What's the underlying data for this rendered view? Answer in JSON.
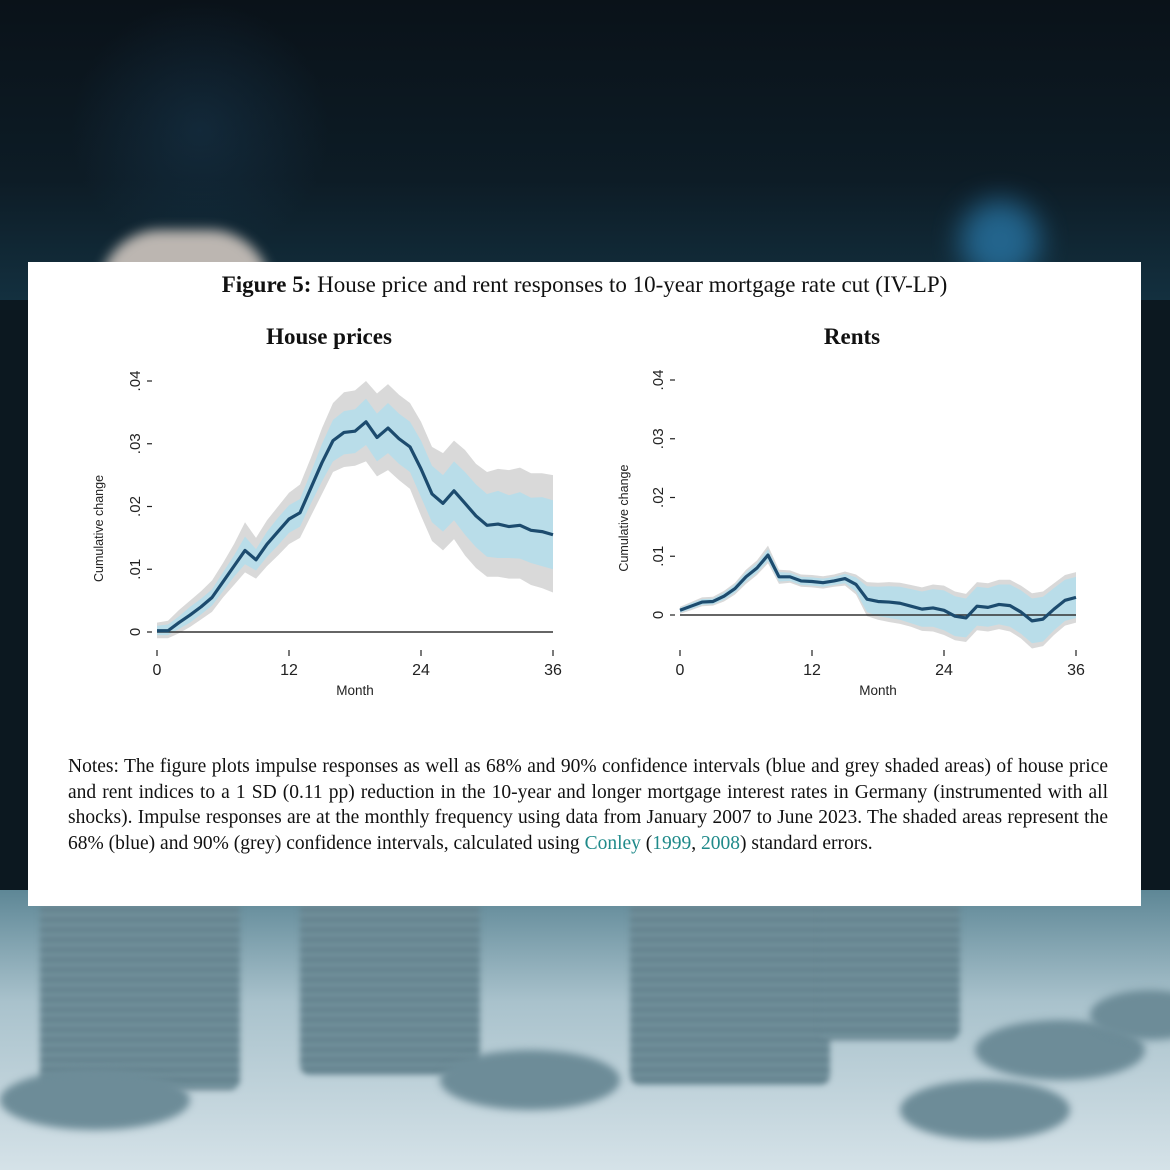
{
  "figure": {
    "label": "Figure 5:",
    "title": "House price and rent responses to 10-year mortgage rate cut (IV-LP)"
  },
  "colors": {
    "line": "#1c4b6e",
    "ci68": "#b9dde9",
    "ci90": "#d9d9d9",
    "zero_line": "#333333",
    "citation": "#1f8a8a"
  },
  "panels": [
    {
      "title": "House prices",
      "ylabel": "Cumulative change",
      "xlabel": "Month"
    },
    {
      "title": "Rents",
      "ylabel": "Cumulative change",
      "xlabel": "Month"
    }
  ],
  "notes": {
    "prefix": "Notes: The figure plots impulse responses as well as 68% and 90% confidence intervals (blue and grey shaded areas) of house price and rent indices to a 1 SD (0.11 pp) reduction in the 10-year and longer mortgage interest rates in Germany (instrumented with all shocks). Impulse responses are at the monthly frequency using data from January 2007 to June 2023. The shaded areas represent the 68% (blue) and 90% (grey) confidence intervals, calculated using ",
    "cite_author": "Conley",
    "paren_open": " (",
    "cite_year1": "1999",
    "comma": ", ",
    "cite_year2": "2008",
    "suffix": ") standard errors."
  },
  "chart_data": [
    {
      "type": "line",
      "title": "House prices",
      "xlabel": "Month",
      "ylabel": "Cumulative change",
      "xticks": [
        0,
        12,
        24,
        36
      ],
      "yticks": [
        0,
        0.01,
        0.02,
        0.03,
        0.04
      ],
      "ytick_labels": [
        "0",
        ".01",
        ".02",
        ".03",
        ".04"
      ],
      "xlim": [
        0,
        36
      ],
      "ylim": [
        0,
        0.04
      ],
      "x": [
        0,
        1,
        2,
        3,
        4,
        5,
        6,
        7,
        8,
        9,
        10,
        11,
        12,
        13,
        14,
        15,
        16,
        17,
        18,
        19,
        20,
        21,
        22,
        23,
        24,
        25,
        26,
        27,
        28,
        29,
        30,
        31,
        32,
        33,
        34,
        35,
        36
      ],
      "series": [
        {
          "name": "Impulse response",
          "values": [
            0.0002,
            0.0002,
            0.0015,
            0.0027,
            0.004,
            0.0055,
            0.008,
            0.0105,
            0.013,
            0.0115,
            0.014,
            0.016,
            0.018,
            0.019,
            0.023,
            0.027,
            0.0305,
            0.0318,
            0.032,
            0.0335,
            0.031,
            0.0325,
            0.0308,
            0.0295,
            0.026,
            0.022,
            0.0205,
            0.0225,
            0.0205,
            0.0185,
            0.017,
            0.0172,
            0.0168,
            0.017,
            0.0162,
            0.016,
            0.0155
          ]
        },
        {
          "name": "68% CI lower",
          "values": [
            -0.0005,
            -0.0005,
            0.0005,
            0.0015,
            0.0028,
            0.0042,
            0.0065,
            0.0088,
            0.0108,
            0.0098,
            0.012,
            0.0138,
            0.0158,
            0.0168,
            0.0205,
            0.024,
            0.0272,
            0.0283,
            0.0285,
            0.0298,
            0.0272,
            0.0285,
            0.0268,
            0.0255,
            0.0215,
            0.0175,
            0.016,
            0.0178,
            0.0155,
            0.0135,
            0.012,
            0.0118,
            0.0118,
            0.0117,
            0.011,
            0.0105,
            0.01
          ]
        },
        {
          "name": "68% CI upper",
          "values": [
            0.001,
            0.0012,
            0.0025,
            0.004,
            0.0053,
            0.0068,
            0.0095,
            0.0122,
            0.0152,
            0.0132,
            0.016,
            0.0182,
            0.0202,
            0.0212,
            0.0255,
            0.03,
            0.0338,
            0.0352,
            0.0355,
            0.0372,
            0.0348,
            0.0365,
            0.0348,
            0.0335,
            0.0305,
            0.0265,
            0.025,
            0.0272,
            0.0255,
            0.0235,
            0.022,
            0.0225,
            0.0218,
            0.0223,
            0.0214,
            0.0215,
            0.021
          ]
        },
        {
          "name": "90% CI lower",
          "values": [
            -0.001,
            -0.001,
            -0.0002,
            0.0008,
            0.002,
            0.0032,
            0.0055,
            0.0075,
            0.0095,
            0.0085,
            0.0105,
            0.0122,
            0.014,
            0.015,
            0.0185,
            0.022,
            0.0255,
            0.0263,
            0.0265,
            0.0272,
            0.0248,
            0.0258,
            0.0242,
            0.0228,
            0.0185,
            0.0145,
            0.013,
            0.0148,
            0.0122,
            0.0102,
            0.0088,
            0.0088,
            0.0085,
            0.0085,
            0.0075,
            0.007,
            0.0063
          ]
        },
        {
          "name": "90% CI upper",
          "values": [
            0.0015,
            0.0018,
            0.0035,
            0.005,
            0.0065,
            0.0082,
            0.011,
            0.014,
            0.0175,
            0.015,
            0.0178,
            0.02,
            0.0222,
            0.0235,
            0.0278,
            0.0325,
            0.0365,
            0.0382,
            0.0385,
            0.04,
            0.038,
            0.0395,
            0.0378,
            0.0365,
            0.0335,
            0.0295,
            0.0285,
            0.0305,
            0.029,
            0.0268,
            0.0255,
            0.026,
            0.0258,
            0.0262,
            0.0253,
            0.0253,
            0.025
          ]
        }
      ]
    },
    {
      "type": "line",
      "title": "Rents",
      "xlabel": "Month",
      "ylabel": "Cumulative change",
      "xticks": [
        0,
        12,
        24,
        36
      ],
      "yticks": [
        0,
        0.01,
        0.02,
        0.03,
        0.04
      ],
      "ytick_labels": [
        "0",
        ".01",
        ".02",
        ".03",
        ".04"
      ],
      "xlim": [
        0,
        36
      ],
      "ylim": [
        -0.005,
        0.04
      ],
      "x": [
        0,
        1,
        2,
        3,
        4,
        5,
        6,
        7,
        8,
        9,
        10,
        11,
        12,
        13,
        14,
        15,
        16,
        17,
        18,
        19,
        20,
        21,
        22,
        23,
        24,
        25,
        26,
        27,
        28,
        29,
        30,
        31,
        32,
        33,
        34,
        35,
        36
      ],
      "series": [
        {
          "name": "Impulse response",
          "values": [
            0.0008,
            0.0015,
            0.0022,
            0.0023,
            0.0032,
            0.0045,
            0.0065,
            0.008,
            0.0102,
            0.0065,
            0.0065,
            0.0058,
            0.0057,
            0.0055,
            0.0058,
            0.0062,
            0.0052,
            0.0027,
            0.0023,
            0.0022,
            0.002,
            0.0015,
            0.001,
            0.0012,
            0.0008,
            -0.0002,
            -0.0005,
            0.0015,
            0.0013,
            0.0018,
            0.0016,
            0.0005,
            -0.001,
            -0.0007,
            0.001,
            0.0025,
            0.003
          ]
        },
        {
          "name": "68% CI lower",
          "values": [
            0.0004,
            0.001,
            0.0017,
            0.0018,
            0.0026,
            0.0038,
            0.0057,
            0.0072,
            0.0092,
            0.0057,
            0.0058,
            0.0051,
            0.005,
            0.0048,
            0.0051,
            0.0054,
            0.004,
            0.0005,
            -0.0002,
            -0.0005,
            -0.0008,
            -0.0014,
            -0.002,
            -0.002,
            -0.0026,
            -0.0036,
            -0.0038,
            -0.0018,
            -0.002,
            -0.0016,
            -0.002,
            -0.0032,
            -0.0048,
            -0.0045,
            -0.0026,
            -0.001,
            -0.0005
          ]
        },
        {
          "name": "68% CI upper",
          "values": [
            0.0012,
            0.002,
            0.0027,
            0.0028,
            0.0038,
            0.0052,
            0.0073,
            0.0088,
            0.0112,
            0.0073,
            0.0072,
            0.0065,
            0.0064,
            0.0062,
            0.0065,
            0.007,
            0.0064,
            0.0049,
            0.0048,
            0.0049,
            0.0048,
            0.0044,
            0.004,
            0.0044,
            0.0042,
            0.0032,
            0.0028,
            0.0048,
            0.0046,
            0.0052,
            0.0052,
            0.0042,
            0.0028,
            0.0031,
            0.0046,
            0.006,
            0.0065
          ]
        },
        {
          "name": "90% CI lower",
          "values": [
            0.0002,
            0.0008,
            0.0015,
            0.0016,
            0.0023,
            0.0035,
            0.0053,
            0.0068,
            0.0088,
            0.0053,
            0.0055,
            0.0048,
            0.0047,
            0.0045,
            0.0048,
            0.005,
            0.0035,
            -0.0002,
            -0.0008,
            -0.0012,
            -0.0015,
            -0.002,
            -0.0027,
            -0.0028,
            -0.0034,
            -0.0043,
            -0.0046,
            -0.0026,
            -0.0028,
            -0.0024,
            -0.0028,
            -0.004,
            -0.0057,
            -0.0053,
            -0.0034,
            -0.0018,
            -0.0013
          ]
        },
        {
          "name": "90% CI upper",
          "values": [
            0.0014,
            0.0022,
            0.003,
            0.0031,
            0.0041,
            0.0055,
            0.0077,
            0.0093,
            0.0118,
            0.0077,
            0.0076,
            0.0069,
            0.0068,
            0.0066,
            0.0069,
            0.0074,
            0.0069,
            0.0056,
            0.0055,
            0.0056,
            0.0055,
            0.0051,
            0.0047,
            0.0052,
            0.005,
            0.004,
            0.0036,
            0.0056,
            0.0054,
            0.006,
            0.006,
            0.005,
            0.0037,
            0.004,
            0.0054,
            0.0068,
            0.0073
          ]
        }
      ]
    }
  ]
}
